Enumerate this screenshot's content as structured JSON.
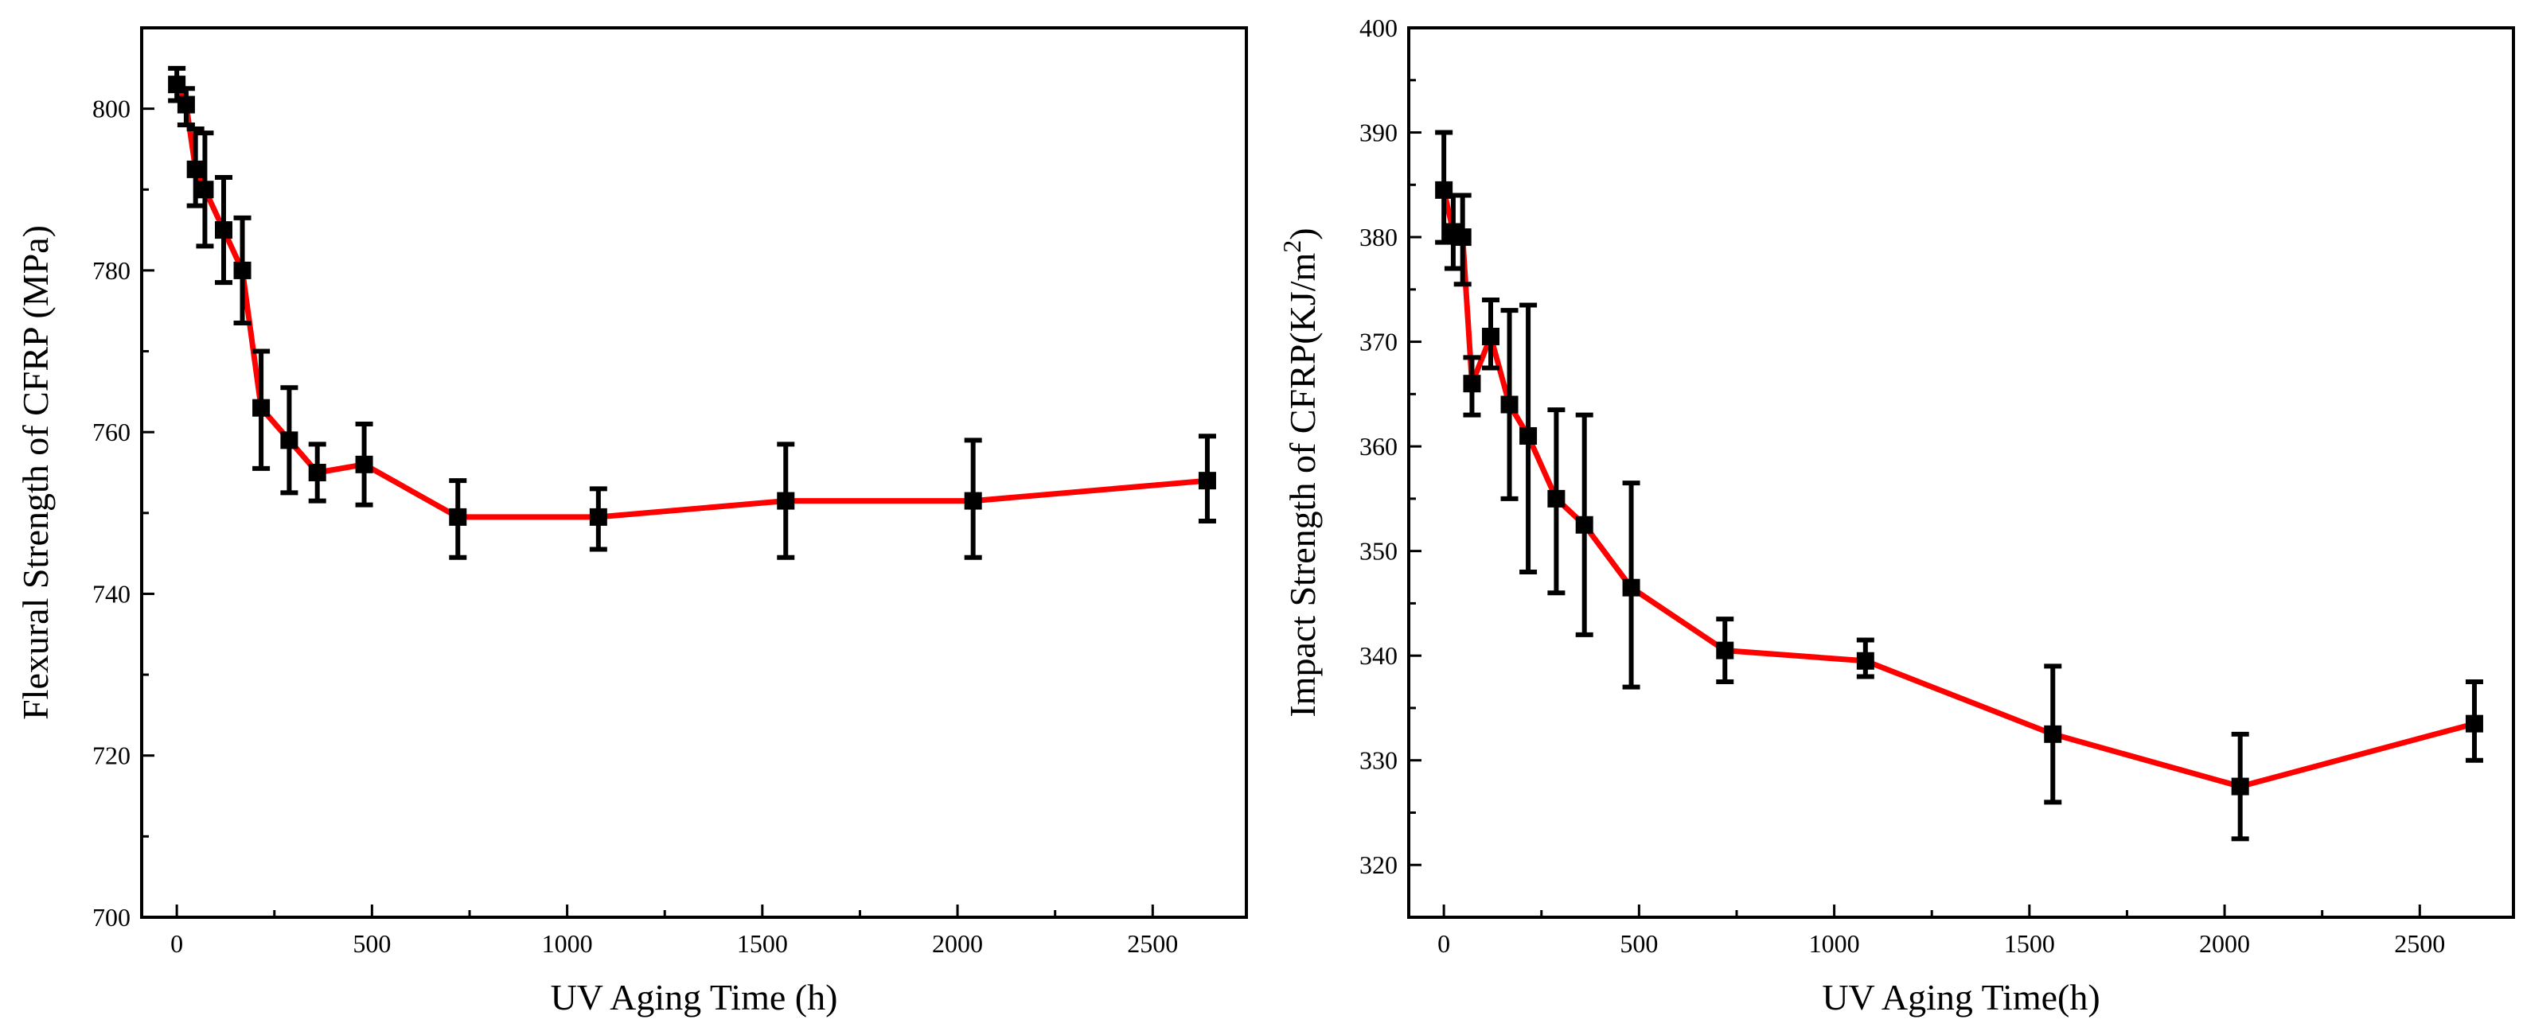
{
  "chart_data": [
    {
      "id": "flexural",
      "type": "line",
      "xlabel": "UV Aging Time (h)",
      "ylabel": "Flexural Strength of CFRP (MPa)",
      "xlim": [
        -90,
        2740
      ],
      "ylim": [
        700,
        810
      ],
      "xticks": [
        0,
        500,
        1000,
        1500,
        2000,
        2500
      ],
      "yticks": [
        700,
        720,
        740,
        760,
        780,
        800
      ],
      "xtick_labels": [
        "0",
        "500",
        "1000",
        "1500",
        "2000",
        "2500"
      ],
      "ytick_labels": [
        "700",
        "720",
        "740",
        "760",
        "780",
        "800"
      ],
      "line_color": "#ff0000",
      "marker_color": "#000000",
      "series": [
        {
          "name": "Flexural Strength",
          "x": [
            0,
            24,
            48,
            72,
            120,
            168,
            216,
            288,
            360,
            480,
            720,
            1080,
            1560,
            2040,
            2640
          ],
          "y": [
            803,
            800.5,
            792.5,
            790,
            785,
            780,
            763,
            759,
            755,
            756,
            749.5,
            749.5,
            751.5,
            751.5,
            754
          ],
          "err_low": [
            801,
            798,
            788,
            783,
            778.5,
            773.5,
            755.5,
            752.5,
            751.5,
            751,
            744.5,
            745.5,
            744.5,
            744.5,
            749
          ],
          "err_high": [
            805,
            802.5,
            797.5,
            797,
            791.5,
            786.5,
            770,
            765.5,
            758.5,
            761,
            754,
            753,
            758.5,
            759,
            759.5
          ]
        }
      ]
    },
    {
      "id": "impact",
      "type": "line",
      "xlabel": "UV Aging Time(h)",
      "ylabel_main": "Impact Strength of CFRP(KJ/m",
      "ylabel_sup": "2",
      "ylabel_end": ")",
      "xlim": [
        -90,
        2740
      ],
      "ylim": [
        315,
        400
      ],
      "xticks": [
        0,
        500,
        1000,
        1500,
        2000,
        2500
      ],
      "yticks": [
        320,
        330,
        340,
        350,
        360,
        370,
        380,
        390,
        400
      ],
      "xtick_labels": [
        "0",
        "500",
        "1000",
        "1500",
        "2000",
        "2500"
      ],
      "ytick_labels": [
        "320",
        "330",
        "340",
        "350",
        "360",
        "370",
        "380",
        "390",
        "400"
      ],
      "line_color": "#ff0000",
      "marker_color": "#000000",
      "series": [
        {
          "name": "Impact Strength",
          "x": [
            0,
            24,
            48,
            72,
            120,
            168,
            216,
            288,
            360,
            480,
            720,
            1080,
            1560,
            2040,
            2640
          ],
          "y": [
            384.5,
            380.5,
            380,
            366,
            370.5,
            364,
            361,
            355,
            352.5,
            346.5,
            340.5,
            339.5,
            332.5,
            327.5,
            333.5
          ],
          "err_low": [
            379.5,
            377,
            375.5,
            363,
            367.5,
            355,
            348,
            346,
            342,
            337,
            337.5,
            338,
            326,
            322.5,
            330
          ],
          "err_high": [
            390,
            384,
            384,
            368.5,
            374,
            373,
            373.5,
            363.5,
            363,
            356.5,
            343.5,
            341.5,
            339,
            332.5,
            337.5
          ]
        }
      ]
    }
  ]
}
